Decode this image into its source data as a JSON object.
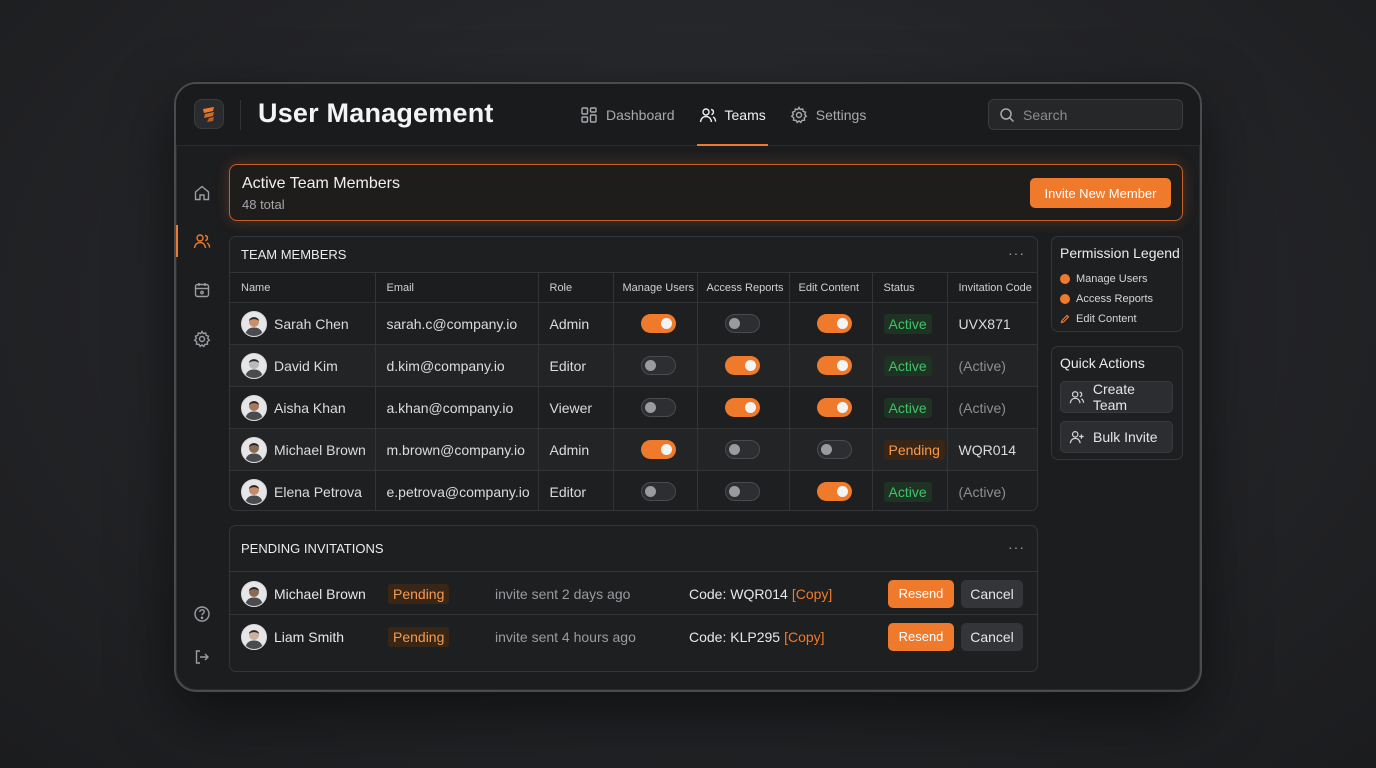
{
  "app": {
    "title": "User Management"
  },
  "nav": [
    {
      "label": "Dashboard",
      "icon": "grid-icon",
      "active": false
    },
    {
      "label": "Teams",
      "icon": "users-icon",
      "active": true
    },
    {
      "label": "Settings",
      "icon": "gear-icon",
      "active": false
    }
  ],
  "search": {
    "placeholder": "Search"
  },
  "sidebar": {
    "items": [
      "home-icon",
      "users-icon",
      "calendar-icon",
      "settings-icon"
    ],
    "active": "users-icon",
    "bottom": [
      "help-icon",
      "logout-icon"
    ]
  },
  "banner": {
    "title": "Active Team Members",
    "subtitle": "48 total",
    "invite_label": "Invite New Member"
  },
  "members": {
    "title": "TEAM MEMBERS",
    "columns": [
      "Name",
      "Email",
      "Role",
      "Manage Users",
      "Access Reports",
      "Edit Content",
      "Status",
      "Invitation Code"
    ],
    "rows": [
      {
        "name": "Sarah Chen",
        "email": "sarah.c@company.io",
        "role": "Admin",
        "manage": true,
        "reports": false,
        "edit": true,
        "status": "Active",
        "code": "UVX871"
      },
      {
        "name": "David Kim",
        "email": "d.kim@company.io",
        "role": "Editor",
        "manage": false,
        "reports": true,
        "edit": true,
        "status": "Active",
        "code": "(Active)"
      },
      {
        "name": "Aisha Khan",
        "email": "a.khan@company.io",
        "role": "Viewer",
        "manage": false,
        "reports": true,
        "edit": true,
        "status": "Active",
        "code": "(Active)"
      },
      {
        "name": "Michael Brown",
        "email": "m.brown@company.io",
        "role": "Admin",
        "manage": true,
        "reports": false,
        "edit": false,
        "status": "Pending",
        "code": "WQR014"
      },
      {
        "name": "Elena Petrova",
        "email": "e.petrova@company.io",
        "role": "Editor",
        "manage": false,
        "reports": false,
        "edit": true,
        "status": "Active",
        "code": "(Active)"
      }
    ]
  },
  "invitations": {
    "title": "PENDING INVITATIONS",
    "rows": [
      {
        "name": "Michael Brown",
        "status": "Pending",
        "sent": "invite sent 2 days ago",
        "code": "Code: WQR014",
        "copy": "[Copy]",
        "resend": "Resend",
        "cancel": "Cancel"
      },
      {
        "name": "Liam Smith",
        "status": "Pending",
        "sent": "invite sent 4 hours ago",
        "code": "Code: KLP295",
        "copy": "[Copy]",
        "resend": "Resend",
        "cancel": "Cancel"
      }
    ]
  },
  "legend": {
    "title": "Permission Legend",
    "items": [
      {
        "label": "Manage Users",
        "icon": "dot-icon"
      },
      {
        "label": "Access Reports",
        "icon": "dot-icon"
      },
      {
        "label": "Edit Content",
        "icon": "pencil-icon"
      }
    ]
  },
  "quick_actions": {
    "title": "Quick Actions",
    "items": [
      {
        "label": "Create Team",
        "icon": "users-icon"
      },
      {
        "label": "Bulk Invite",
        "icon": "user-plus-icon"
      }
    ]
  },
  "colors": {
    "accent": "#f07a2c",
    "active_green": "#3fc46a",
    "background": "#1c1d1f"
  }
}
